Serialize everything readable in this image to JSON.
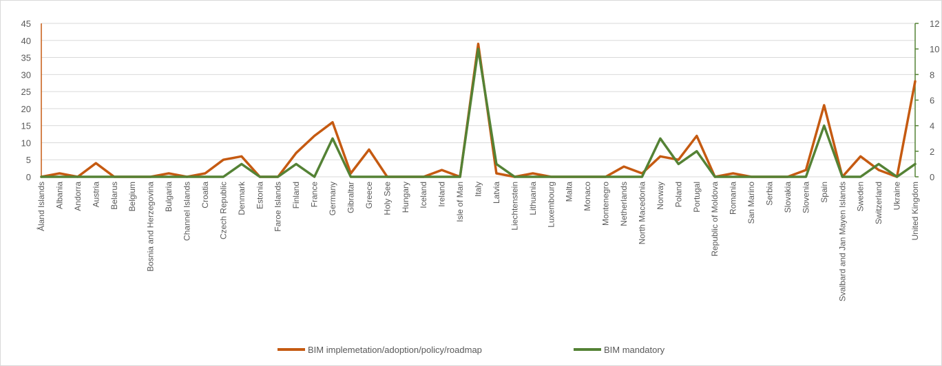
{
  "chart_data": {
    "type": "line",
    "title": "",
    "xlabel": "",
    "ylabel": "",
    "ylim": [
      0,
      45
    ],
    "y2lim": [
      0,
      12
    ],
    "yticks": [
      0,
      5,
      10,
      15,
      20,
      25,
      30,
      35,
      40,
      45
    ],
    "y2ticks": [
      0,
      2,
      4,
      6,
      8,
      10,
      12
    ],
    "grid": true,
    "legend_position": "bottom",
    "categories": [
      "Åland Islands",
      "Albania",
      "Andorra",
      "Austria",
      "Belarus",
      "Belgium",
      "Bosnia and Herzegovina",
      "Bulgaria",
      "Channel Islands",
      "Croatia",
      "Czech Republic",
      "Denmark",
      "Estonia",
      "Faroe Islands",
      "Finland",
      "France",
      "Germany",
      "Gibraltar",
      "Greece",
      "Holy See",
      "Hungary",
      "Iceland",
      "Ireland",
      "Isle of Man",
      "Italy",
      "Latvia",
      "Liechtenstein",
      "Lithuania",
      "Luxembourg",
      "Malta",
      "Monaco",
      "Montenegro",
      "Netherlands",
      "North Macedonia",
      "Norway",
      "Poland",
      "Portugal",
      "Republic of Moldova",
      "Romania",
      "San Marino",
      "Serbia",
      "Slovakia",
      "Slovenia",
      "Spain",
      "Svalbard and Jan Mayen Islands",
      "Sweden",
      "Switzerland",
      "Ukraine",
      "United Kingdom"
    ],
    "series": [
      {
        "name": "BIM implemetation/adoption/policy/roadmap",
        "axis": "left",
        "color": "#c55a11",
        "values": [
          0,
          1,
          0,
          4,
          0,
          0,
          0,
          1,
          0,
          1,
          5,
          6,
          0,
          0,
          7,
          12,
          16,
          1,
          8,
          0,
          0,
          0,
          2,
          0,
          39,
          1,
          0,
          1,
          0,
          0,
          0,
          0,
          3,
          1,
          6,
          5,
          12,
          0,
          1,
          0,
          0,
          0,
          2,
          21,
          0,
          6,
          2,
          0,
          28
        ]
      },
      {
        "name": "BIM mandatory",
        "axis": "right",
        "color": "#548235",
        "values": [
          0,
          0,
          0,
          0,
          0,
          0,
          0,
          0,
          0,
          0,
          0,
          1,
          0,
          0,
          1,
          0,
          3,
          0,
          0,
          0,
          0,
          0,
          0,
          0,
          10,
          1,
          0,
          0,
          0,
          0,
          0,
          0,
          0,
          0,
          3,
          1,
          2,
          0,
          0,
          0,
          0,
          0,
          0,
          4,
          0,
          0,
          1,
          0,
          1
        ]
      }
    ]
  }
}
